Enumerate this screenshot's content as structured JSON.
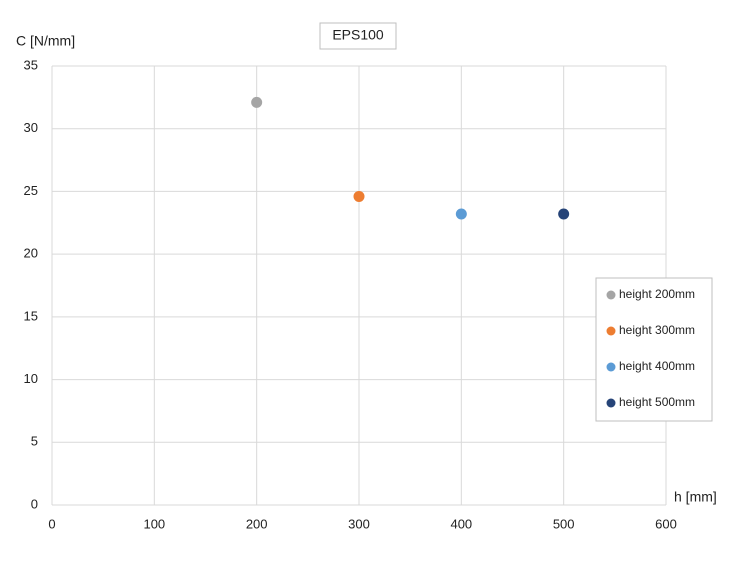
{
  "chart_data": {
    "type": "scatter",
    "title": "EPS100",
    "x_label": "h [mm]",
    "y_label": "C [N/mm]",
    "series": [
      {
        "name": "height 200mm",
        "color": "#a5a5a5",
        "x": [
          200
        ],
        "values": [
          32.1
        ]
      },
      {
        "name": "height 300mm",
        "color": "#ed7d31",
        "x": [
          300
        ],
        "values": [
          24.6
        ]
      },
      {
        "name": "height 400mm",
        "color": "#5b9bd5",
        "x": [
          400
        ],
        "values": [
          23.2
        ]
      },
      {
        "name": "height 500mm",
        "color": "#264478",
        "x": [
          500
        ],
        "values": [
          23.2
        ]
      }
    ],
    "xlim": [
      0,
      600
    ],
    "xticks": [
      0,
      100,
      200,
      300,
      400,
      500,
      600
    ],
    "ylim": [
      0,
      35
    ],
    "yticks": [
      0,
      5,
      10,
      15,
      20,
      25,
      30,
      35
    ],
    "grid": true,
    "legend": "right"
  }
}
